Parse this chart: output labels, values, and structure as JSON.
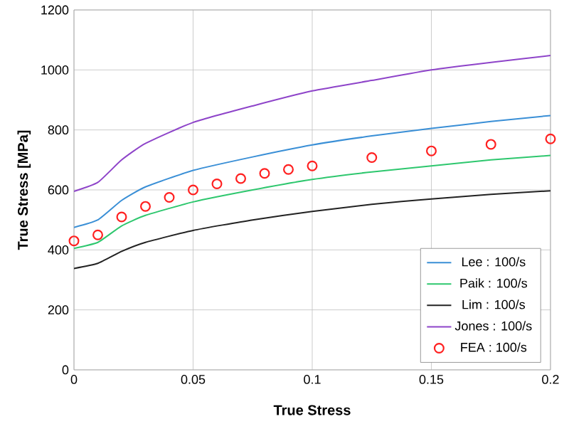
{
  "chart_data": {
    "type": "line",
    "xlabel": "True Stress",
    "ylabel": "True Stress [MPa]",
    "x": [
      0,
      0.01,
      0.02,
      0.03,
      0.05,
      0.075,
      0.1,
      0.125,
      0.15,
      0.175,
      0.2
    ],
    "series": [
      {
        "name": "Lee : 100/s",
        "color": "#3a8fd6",
        "values": [
          475,
          500,
          565,
          610,
          665,
          710,
          750,
          780,
          805,
          828,
          848
        ]
      },
      {
        "name": "Paik : 100/s",
        "color": "#2ec76e",
        "values": [
          405,
          425,
          480,
          515,
          560,
          600,
          635,
          660,
          680,
          700,
          715
        ]
      },
      {
        "name": "Lim : 100/s",
        "color": "#222222",
        "values": [
          338,
          355,
          395,
          425,
          465,
          500,
          528,
          552,
          570,
          585,
          597
        ]
      },
      {
        "name": "Jones : 100/s",
        "color": "#8e44c9",
        "values": [
          595,
          625,
          700,
          755,
          825,
          880,
          930,
          965,
          1000,
          1025,
          1048
        ]
      },
      {
        "name": "FEA : 100/s",
        "color": "#ff2020",
        "type": "scatter",
        "marker": "circle",
        "x": [
          0,
          0.01,
          0.02,
          0.03,
          0.04,
          0.05,
          0.06,
          0.07,
          0.08,
          0.09,
          0.1,
          0.125,
          0.15,
          0.175,
          0.2
        ],
        "values": [
          430,
          450,
          510,
          545,
          575,
          600,
          620,
          638,
          655,
          668,
          680,
          708,
          730,
          752,
          770
        ]
      }
    ],
    "xlim": [
      0,
      0.2
    ],
    "ylim": [
      0,
      1200
    ],
    "xticks": [
      0,
      0.05,
      0.1,
      0.15,
      0.2
    ],
    "yticks": [
      0,
      200,
      400,
      600,
      800,
      1000,
      1200
    ],
    "grid": true,
    "legend": "bottom right"
  }
}
